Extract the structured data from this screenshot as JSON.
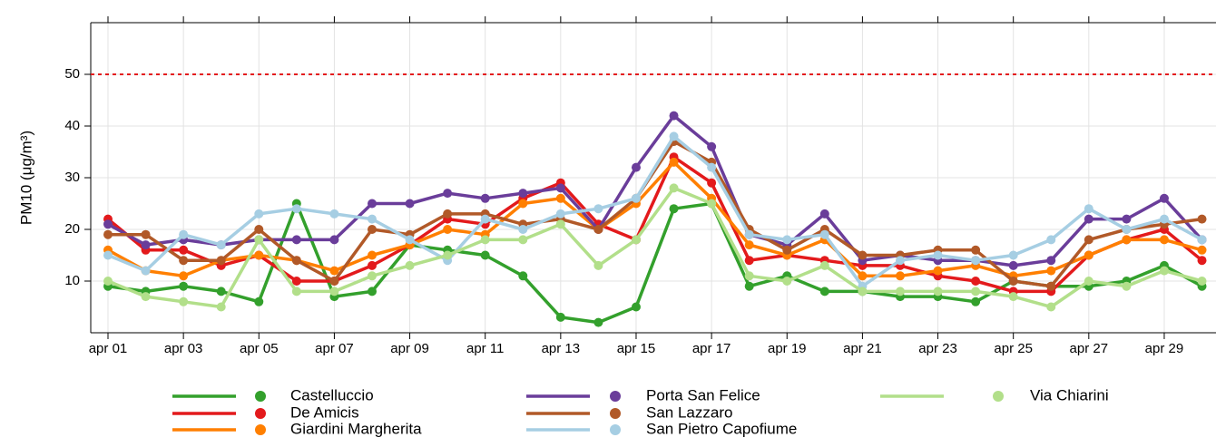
{
  "chart_data": {
    "type": "line",
    "y_label": "PM10 (μg/m³)",
    "categories": [
      "apr 01",
      null,
      "apr 03",
      null,
      "apr 05",
      null,
      "apr 07",
      null,
      "apr 09",
      null,
      "apr 11",
      null,
      "apr 13",
      null,
      "apr 15",
      null,
      "apr 17",
      null,
      "apr 19",
      null,
      "apr 21",
      null,
      "apr 23",
      null,
      "apr 25",
      null,
      "apr 27",
      null,
      "apr 29",
      null
    ],
    "ylim": [
      0,
      60
    ],
    "yticks": [
      10,
      20,
      30,
      40,
      50
    ],
    "grid": true,
    "hline": {
      "value": 50,
      "color": "#e31a1c"
    },
    "legend": "bottom",
    "series": [
      {
        "name": "Castelluccio",
        "color": "#33a02c",
        "values": [
          9,
          8,
          9,
          8,
          6,
          25,
          7,
          8,
          17,
          16,
          15,
          11,
          3,
          2,
          5,
          24,
          25,
          9,
          11,
          8,
          8,
          7,
          7,
          6,
          10,
          9,
          9,
          10,
          13,
          9
        ]
      },
      {
        "name": "De Amicis",
        "color": "#e31a1c",
        "values": [
          22,
          16,
          16,
          13,
          15,
          10,
          10,
          13,
          17,
          22,
          21,
          26,
          29,
          21,
          18,
          34,
          29,
          14,
          15,
          14,
          13,
          13,
          11,
          10,
          8,
          8,
          15,
          18,
          20,
          14
        ]
      },
      {
        "name": "Giardini Margherita",
        "color": "#ff7f00",
        "values": [
          16,
          12,
          11,
          14,
          15,
          14,
          12,
          15,
          17,
          20,
          19,
          25,
          26,
          20,
          25,
          33,
          26,
          17,
          15,
          18,
          11,
          11,
          12,
          13,
          11,
          12,
          15,
          18,
          18,
          16
        ]
      },
      {
        "name": "Porta San Felice",
        "color": "#6a3d9a",
        "values": [
          21,
          17,
          18,
          17,
          18,
          18,
          18,
          25,
          25,
          27,
          26,
          27,
          28,
          20,
          32,
          42,
          36,
          19,
          17,
          23,
          14,
          15,
          14,
          14,
          13,
          14,
          22,
          22,
          26,
          18
        ]
      },
      {
        "name": "San Lazzaro",
        "color": "#b15928",
        "values": [
          19,
          19,
          14,
          14,
          20,
          14,
          10,
          20,
          19,
          23,
          23,
          21,
          22,
          20,
          26,
          37,
          33,
          20,
          16,
          20,
          15,
          15,
          16,
          16,
          10,
          9,
          18,
          20,
          21,
          22
        ]
      },
      {
        "name": "San Pietro Capofiume",
        "color": "#a6cee3",
        "values": [
          15,
          12,
          19,
          17,
          23,
          24,
          23,
          22,
          18,
          14,
          22,
          20,
          23,
          24,
          26,
          38,
          32,
          19,
          18,
          19,
          9,
          14,
          15,
          14,
          15,
          18,
          24,
          20,
          22,
          18
        ]
      },
      {
        "name": "Via Chiarini",
        "color": "#b2df8a",
        "values": [
          10,
          7,
          6,
          5,
          18,
          8,
          8,
          11,
          13,
          15,
          18,
          18,
          21,
          13,
          18,
          28,
          25,
          11,
          10,
          13,
          8,
          8,
          8,
          8,
          7,
          5,
          10,
          9,
          12,
          10
        ]
      }
    ]
  }
}
